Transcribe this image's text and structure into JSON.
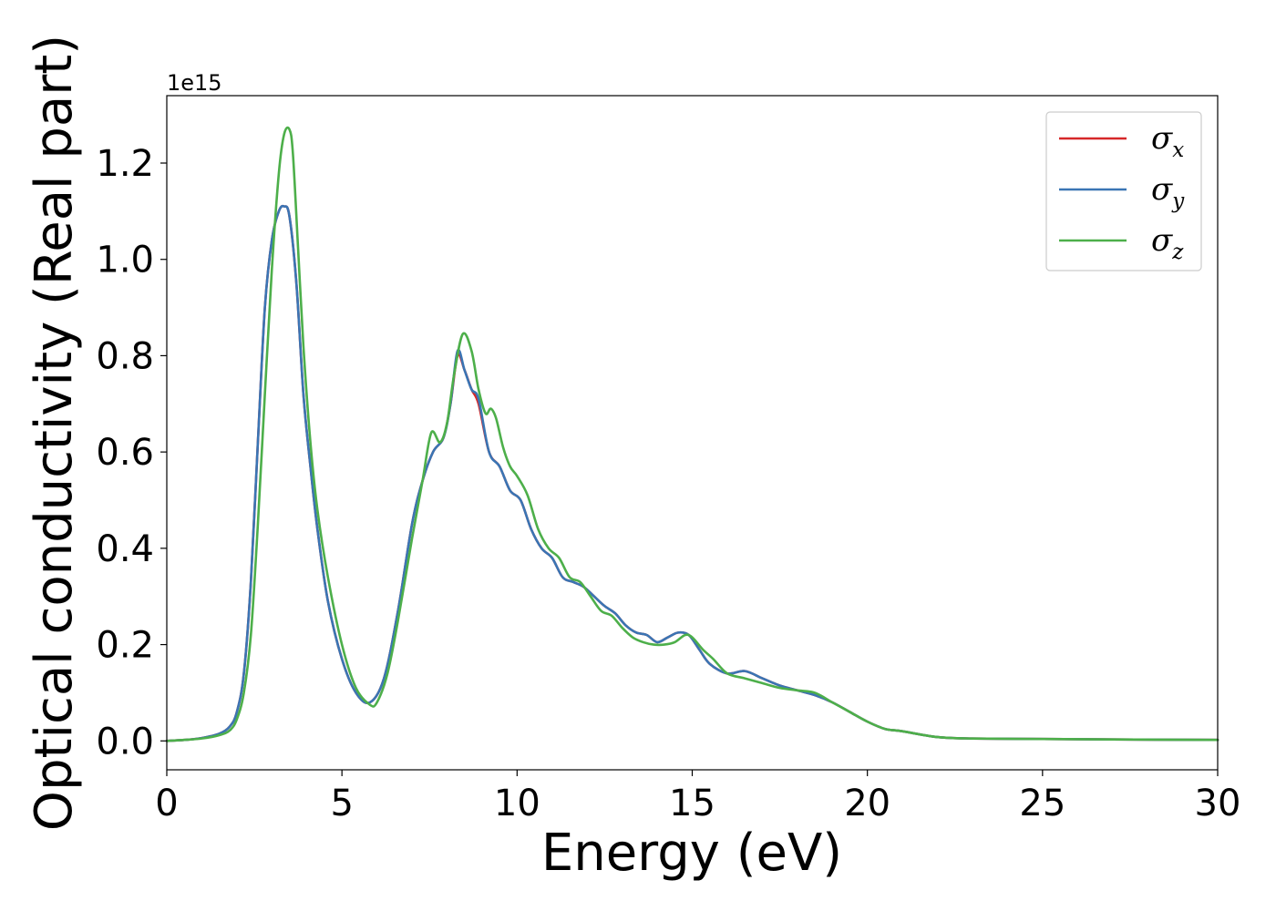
{
  "chart_data": {
    "type": "line",
    "title": "",
    "xlabel": "Energy (eV)",
    "ylabel": "Optical conductivity (Real part)",
    "y_offset_label": "1e15",
    "xlim": [
      0,
      30
    ],
    "ylim": [
      -0.06,
      1.34
    ],
    "xticks": [
      0,
      5,
      10,
      15,
      20,
      25,
      30
    ],
    "xtick_labels": [
      "0",
      "5",
      "10",
      "15",
      "20",
      "25",
      "30"
    ],
    "yticks": [
      0.0,
      0.2,
      0.4,
      0.6,
      0.8,
      1.0,
      1.2
    ],
    "ytick_labels": [
      "0.0",
      "0.2",
      "0.4",
      "0.6",
      "0.8",
      "1.0",
      "1.2"
    ],
    "grid": false,
    "legend_position": "top-right",
    "series": [
      {
        "name": "σ",
        "subscript": "x",
        "color": "#d62728",
        "x": [
          0,
          0.5,
          1,
          1.5,
          1.8,
          2.0,
          2.2,
          2.4,
          2.6,
          2.8,
          3.0,
          3.2,
          3.35,
          3.5,
          3.7,
          3.9,
          4.1,
          4.3,
          4.6,
          5.0,
          5.4,
          5.8,
          6.2,
          6.6,
          7.0,
          7.3,
          7.6,
          7.9,
          8.1,
          8.3,
          8.5,
          8.7,
          8.9,
          9.2,
          9.5,
          9.8,
          10.1,
          10.4,
          10.7,
          11.0,
          11.3,
          11.6,
          11.9,
          12.2,
          12.5,
          12.8,
          13.1,
          13.4,
          13.7,
          14.0,
          14.3,
          14.6,
          14.9,
          15.2,
          15.5,
          16.0,
          16.5,
          17.0,
          17.5,
          18.0,
          18.5,
          19.0,
          19.5,
          20.0,
          20.5,
          21.0,
          22.0,
          23.0,
          25.0,
          27.0,
          30.0
        ],
        "values": [
          0.0,
          0.002,
          0.006,
          0.015,
          0.03,
          0.06,
          0.14,
          0.33,
          0.62,
          0.9,
          1.04,
          1.1,
          1.11,
          1.09,
          0.95,
          0.72,
          0.57,
          0.44,
          0.29,
          0.17,
          0.1,
          0.08,
          0.13,
          0.27,
          0.45,
          0.54,
          0.6,
          0.63,
          0.7,
          0.8,
          0.77,
          0.73,
          0.7,
          0.6,
          0.57,
          0.52,
          0.5,
          0.44,
          0.4,
          0.38,
          0.34,
          0.33,
          0.32,
          0.3,
          0.28,
          0.265,
          0.24,
          0.225,
          0.22,
          0.205,
          0.215,
          0.225,
          0.22,
          0.19,
          0.16,
          0.14,
          0.145,
          0.13,
          0.115,
          0.105,
          0.095,
          0.08,
          0.06,
          0.04,
          0.025,
          0.02,
          0.008,
          0.005,
          0.004,
          0.003,
          0.002
        ]
      },
      {
        "name": "σ",
        "subscript": "y",
        "color": "#3a75b4",
        "x": [
          0,
          0.5,
          1,
          1.5,
          1.8,
          2.0,
          2.2,
          2.4,
          2.6,
          2.8,
          3.0,
          3.2,
          3.35,
          3.5,
          3.7,
          3.9,
          4.1,
          4.3,
          4.6,
          5.0,
          5.4,
          5.8,
          6.2,
          6.6,
          7.0,
          7.3,
          7.6,
          7.9,
          8.1,
          8.3,
          8.5,
          8.7,
          8.9,
          9.2,
          9.5,
          9.8,
          10.1,
          10.4,
          10.7,
          11.0,
          11.3,
          11.6,
          11.9,
          12.2,
          12.5,
          12.8,
          13.1,
          13.4,
          13.7,
          14.0,
          14.3,
          14.6,
          14.9,
          15.2,
          15.5,
          16.0,
          16.5,
          17.0,
          17.5,
          18.0,
          18.5,
          19.0,
          19.5,
          20.0,
          20.5,
          21.0,
          22.0,
          23.0,
          25.0,
          27.0,
          30.0
        ],
        "values": [
          0.0,
          0.002,
          0.006,
          0.015,
          0.03,
          0.06,
          0.14,
          0.33,
          0.62,
          0.9,
          1.04,
          1.1,
          1.11,
          1.09,
          0.95,
          0.72,
          0.57,
          0.44,
          0.29,
          0.17,
          0.1,
          0.08,
          0.13,
          0.27,
          0.45,
          0.54,
          0.6,
          0.63,
          0.7,
          0.81,
          0.77,
          0.73,
          0.71,
          0.6,
          0.57,
          0.52,
          0.5,
          0.44,
          0.4,
          0.38,
          0.34,
          0.33,
          0.32,
          0.3,
          0.28,
          0.265,
          0.24,
          0.225,
          0.22,
          0.205,
          0.215,
          0.225,
          0.22,
          0.19,
          0.16,
          0.14,
          0.145,
          0.13,
          0.115,
          0.105,
          0.095,
          0.08,
          0.06,
          0.04,
          0.025,
          0.02,
          0.008,
          0.005,
          0.004,
          0.003,
          0.002
        ]
      },
      {
        "name": "σ",
        "subscript": "z",
        "color": "#4daf4a",
        "x": [
          0,
          0.5,
          1,
          1.5,
          1.8,
          2.0,
          2.2,
          2.4,
          2.6,
          2.8,
          3.0,
          3.2,
          3.35,
          3.5,
          3.6,
          3.75,
          3.9,
          4.1,
          4.3,
          4.6,
          5.0,
          5.4,
          5.8,
          6.0,
          6.3,
          6.6,
          7.0,
          7.3,
          7.55,
          7.8,
          8.0,
          8.2,
          8.45,
          8.7,
          8.9,
          9.1,
          9.25,
          9.4,
          9.6,
          9.8,
          10.0,
          10.3,
          10.6,
          10.9,
          11.2,
          11.5,
          11.8,
          12.1,
          12.4,
          12.7,
          13.0,
          13.3,
          13.6,
          13.9,
          14.2,
          14.5,
          14.8,
          15.0,
          15.3,
          15.6,
          16.0,
          16.5,
          17.0,
          17.5,
          18.0,
          18.5,
          19.0,
          19.5,
          20.0,
          20.5,
          21.0,
          22.0,
          23.0,
          25.0,
          27.0,
          30.0
        ],
        "values": [
          0.0,
          0.002,
          0.005,
          0.012,
          0.022,
          0.045,
          0.1,
          0.22,
          0.45,
          0.72,
          0.98,
          1.18,
          1.26,
          1.27,
          1.22,
          1.02,
          0.82,
          0.62,
          0.48,
          0.34,
          0.2,
          0.11,
          0.075,
          0.08,
          0.14,
          0.25,
          0.42,
          0.54,
          0.64,
          0.62,
          0.66,
          0.76,
          0.845,
          0.81,
          0.73,
          0.68,
          0.69,
          0.67,
          0.61,
          0.57,
          0.55,
          0.51,
          0.44,
          0.4,
          0.38,
          0.34,
          0.33,
          0.3,
          0.27,
          0.26,
          0.235,
          0.215,
          0.205,
          0.2,
          0.2,
          0.205,
          0.22,
          0.215,
          0.19,
          0.17,
          0.14,
          0.13,
          0.12,
          0.11,
          0.105,
          0.1,
          0.08,
          0.06,
          0.04,
          0.025,
          0.02,
          0.008,
          0.005,
          0.004,
          0.003,
          0.002
        ]
      }
    ]
  }
}
